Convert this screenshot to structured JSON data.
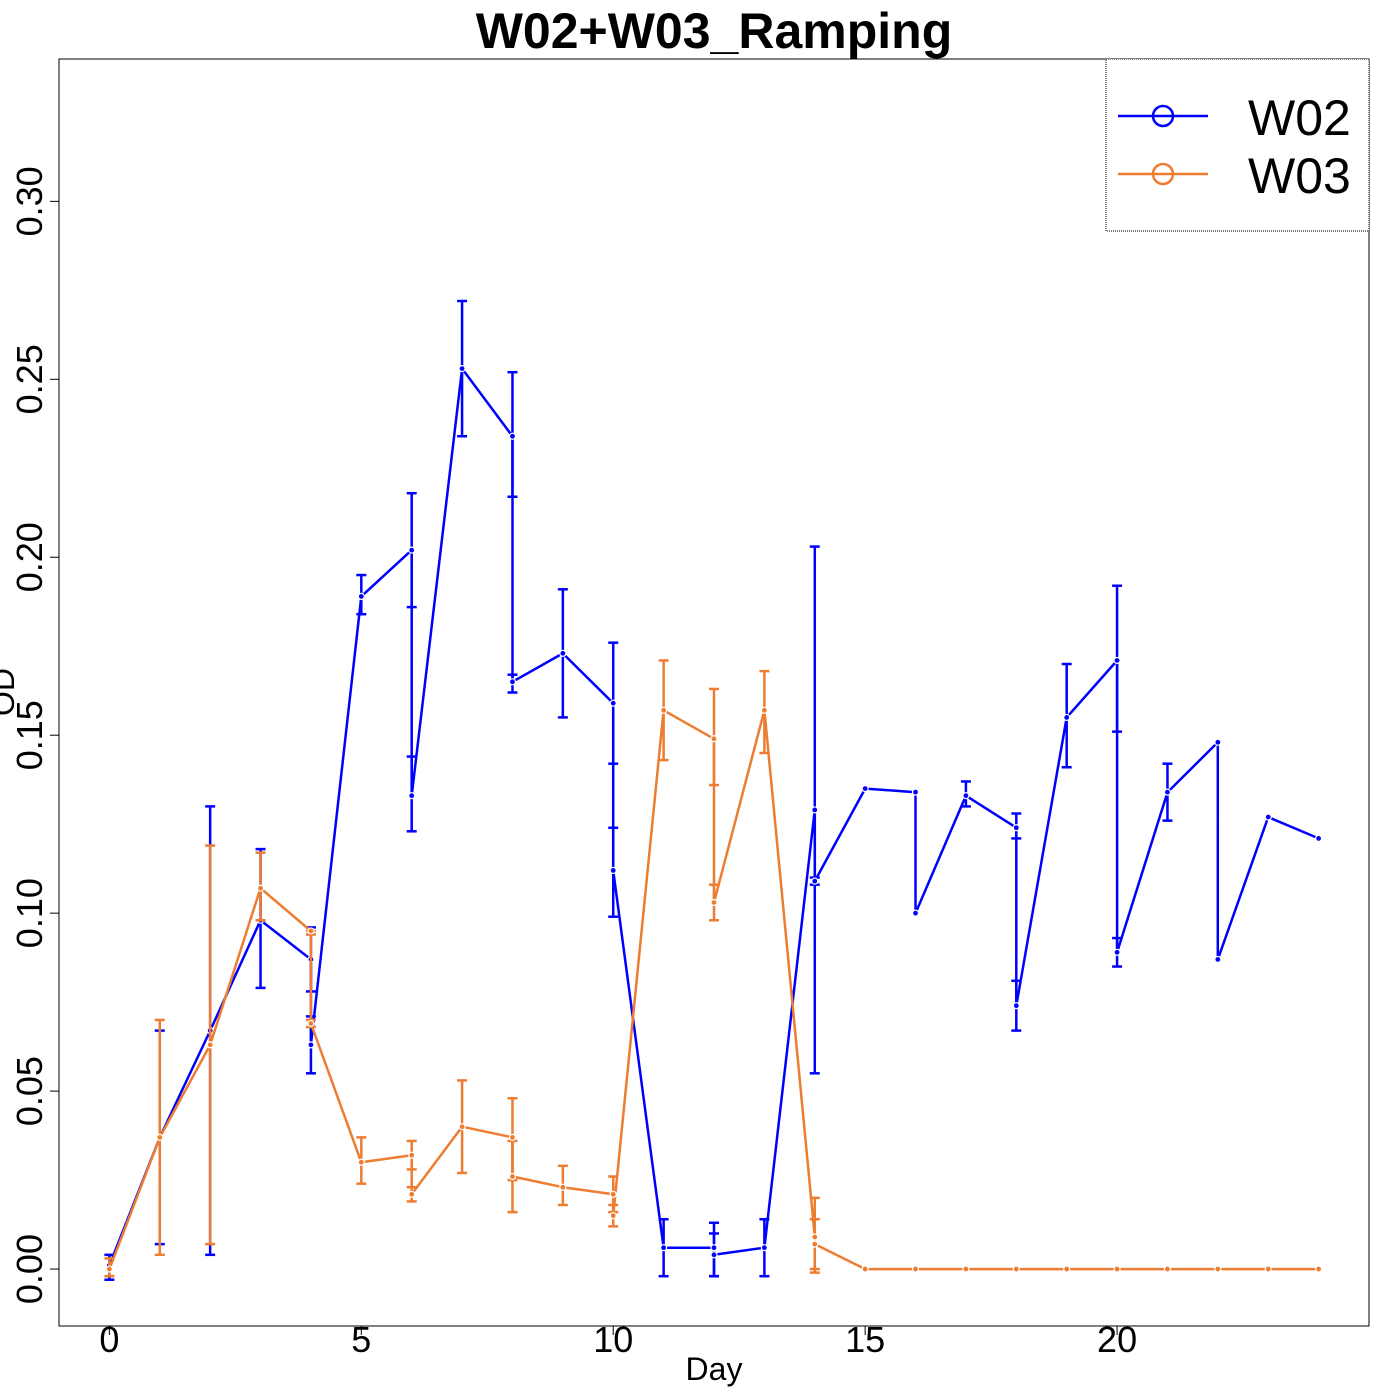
{
  "chart_data": {
    "type": "line",
    "title": "W02+W03_Ramping",
    "xlabel": "Day",
    "ylabel": "OD",
    "xlim": [
      -1,
      25
    ],
    "ylim": [
      -0.016,
      0.34
    ],
    "x_ticks": [
      "0",
      "5",
      "10",
      "15",
      "20"
    ],
    "x_tick_values": [
      0,
      5,
      10,
      15,
      20
    ],
    "y_ticks": [
      "0.00",
      "0.05",
      "0.10",
      "0.15",
      "0.20",
      "0.25",
      "0.30"
    ],
    "y_tick_values": [
      0,
      0.05,
      0.1,
      0.15,
      0.2,
      0.25,
      0.3
    ],
    "legend_position": "top-right",
    "grid": false,
    "series": [
      {
        "name": "W02",
        "color": "#0000ff",
        "points": [
          {
            "x": 0,
            "y": 0.001,
            "lo": -0.003,
            "hi": 0.004
          },
          {
            "x": 1,
            "y": 0.037,
            "lo": 0.007,
            "hi": 0.067
          },
          {
            "x": 2,
            "y": 0.067,
            "lo": 0.004,
            "hi": 0.13
          },
          {
            "x": 3,
            "y": 0.098,
            "lo": 0.079,
            "hi": 0.118
          },
          {
            "x": 4,
            "y": 0.087,
            "lo": 0.078,
            "hi": 0.096
          },
          {
            "x": 4,
            "y": 0.063,
            "lo": 0.055,
            "hi": 0.071
          },
          {
            "x": 5,
            "y": 0.189,
            "lo": 0.184,
            "hi": 0.195
          },
          {
            "x": 6,
            "y": 0.202,
            "lo": 0.186,
            "hi": 0.218
          },
          {
            "x": 6,
            "y": 0.133,
            "lo": 0.123,
            "hi": 0.144
          },
          {
            "x": 7,
            "y": 0.253,
            "lo": 0.234,
            "hi": 0.272
          },
          {
            "x": 8,
            "y": 0.234,
            "lo": 0.217,
            "hi": 0.252
          },
          {
            "x": 8,
            "y": 0.165,
            "lo": 0.162,
            "hi": 0.167
          },
          {
            "x": 9,
            "y": 0.173,
            "lo": 0.155,
            "hi": 0.191
          },
          {
            "x": 10,
            "y": 0.159,
            "lo": 0.142,
            "hi": 0.176
          },
          {
            "x": 10,
            "y": 0.112,
            "lo": 0.099,
            "hi": 0.124
          },
          {
            "x": 11,
            "y": 0.006,
            "lo": -0.002,
            "hi": 0.014
          },
          {
            "x": 12,
            "y": 0.006,
            "lo": -0.002,
            "hi": 0.013
          },
          {
            "x": 12,
            "y": 0.004,
            "lo": -0.002,
            "hi": 0.01
          },
          {
            "x": 13,
            "y": 0.006,
            "lo": -0.002,
            "hi": 0.014
          },
          {
            "x": 14,
            "y": 0.129,
            "lo": 0.055,
            "hi": 0.203
          },
          {
            "x": 14,
            "y": 0.109,
            "lo": 0.108,
            "hi": 0.11
          },
          {
            "x": 15,
            "y": 0.135,
            "lo": null,
            "hi": null
          },
          {
            "x": 16,
            "y": 0.134,
            "lo": null,
            "hi": null
          },
          {
            "x": 16,
            "y": 0.1,
            "lo": null,
            "hi": null
          },
          {
            "x": 17,
            "y": 0.133,
            "lo": 0.13,
            "hi": 0.137
          },
          {
            "x": 18,
            "y": 0.124,
            "lo": 0.121,
            "hi": 0.128
          },
          {
            "x": 18,
            "y": 0.074,
            "lo": 0.067,
            "hi": 0.081
          },
          {
            "x": 19,
            "y": 0.155,
            "lo": 0.141,
            "hi": 0.17
          },
          {
            "x": 20,
            "y": 0.171,
            "lo": 0.151,
            "hi": 0.192
          },
          {
            "x": 20,
            "y": 0.089,
            "lo": 0.085,
            "hi": 0.093
          },
          {
            "x": 21,
            "y": 0.134,
            "lo": 0.126,
            "hi": 0.142
          },
          {
            "x": 22,
            "y": 0.148,
            "lo": null,
            "hi": null
          },
          {
            "x": 22,
            "y": 0.087,
            "lo": null,
            "hi": null
          },
          {
            "x": 23,
            "y": 0.127,
            "lo": null,
            "hi": null
          },
          {
            "x": 24,
            "y": 0.121,
            "lo": null,
            "hi": null
          }
        ]
      },
      {
        "name": "W03",
        "color": "#ed7d31",
        "points": [
          {
            "x": 0,
            "y": 0.0,
            "lo": -0.002,
            "hi": 0.003
          },
          {
            "x": 1,
            "y": 0.037,
            "lo": 0.004,
            "hi": 0.07
          },
          {
            "x": 2,
            "y": 0.063,
            "lo": 0.007,
            "hi": 0.119
          },
          {
            "x": 3,
            "y": 0.107,
            "lo": 0.098,
            "hi": 0.117
          },
          {
            "x": 4,
            "y": 0.095,
            "lo": 0.094,
            "hi": 0.095
          },
          {
            "x": 4,
            "y": 0.069,
            "lo": 0.068,
            "hi": 0.07
          },
          {
            "x": 5,
            "y": 0.03,
            "lo": 0.024,
            "hi": 0.037
          },
          {
            "x": 6,
            "y": 0.032,
            "lo": 0.028,
            "hi": 0.036
          },
          {
            "x": 6,
            "y": 0.021,
            "lo": 0.019,
            "hi": 0.023
          },
          {
            "x": 7,
            "y": 0.04,
            "lo": 0.027,
            "hi": 0.053
          },
          {
            "x": 8,
            "y": 0.037,
            "lo": 0.025,
            "hi": 0.048
          },
          {
            "x": 8,
            "y": 0.026,
            "lo": 0.016,
            "hi": 0.036
          },
          {
            "x": 9,
            "y": 0.023,
            "lo": 0.018,
            "hi": 0.029
          },
          {
            "x": 10,
            "y": 0.021,
            "lo": 0.016,
            "hi": 0.026
          },
          {
            "x": 10,
            "y": 0.015,
            "lo": 0.012,
            "hi": 0.018
          },
          {
            "x": 11,
            "y": 0.157,
            "lo": 0.143,
            "hi": 0.171
          },
          {
            "x": 12,
            "y": 0.149,
            "lo": 0.136,
            "hi": 0.163
          },
          {
            "x": 12,
            "y": 0.103,
            "lo": 0.098,
            "hi": 0.108
          },
          {
            "x": 13,
            "y": 0.157,
            "lo": 0.145,
            "hi": 0.168
          },
          {
            "x": 14,
            "y": 0.009,
            "lo": 0.0,
            "hi": 0.02
          },
          {
            "x": 14,
            "y": 0.007,
            "lo": -0.001,
            "hi": 0.014
          },
          {
            "x": 15,
            "y": 0.0,
            "lo": null,
            "hi": null
          },
          {
            "x": 16,
            "y": 0.0,
            "lo": null,
            "hi": null
          },
          {
            "x": 17,
            "y": 0.0,
            "lo": null,
            "hi": null
          },
          {
            "x": 18,
            "y": 0.0,
            "lo": null,
            "hi": null
          },
          {
            "x": 19,
            "y": 0.0,
            "lo": null,
            "hi": null
          },
          {
            "x": 20,
            "y": 0.0,
            "lo": null,
            "hi": null
          },
          {
            "x": 21,
            "y": 0.0,
            "lo": null,
            "hi": null
          },
          {
            "x": 22,
            "y": 0.0,
            "lo": null,
            "hi": null
          },
          {
            "x": 23,
            "y": 0.0,
            "lo": null,
            "hi": null
          },
          {
            "x": 24,
            "y": 0.0,
            "lo": null,
            "hi": null
          }
        ]
      }
    ]
  }
}
